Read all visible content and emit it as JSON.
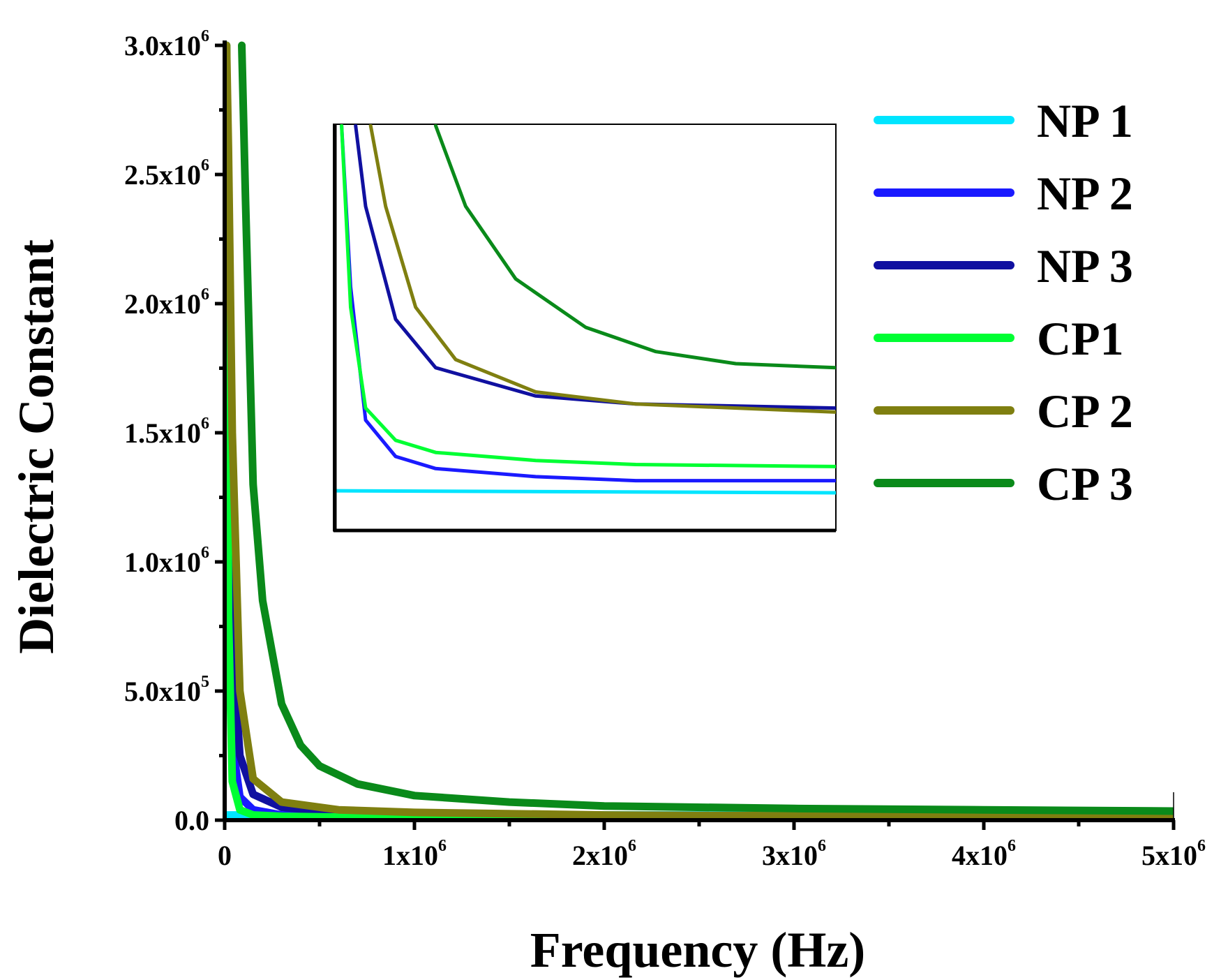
{
  "chart_data": {
    "type": "line",
    "title": "",
    "xlabel": "Frequency (Hz)",
    "ylabel": "Dielectric Constant",
    "xlim": [
      0,
      5000000
    ],
    "ylim": [
      0,
      3000000
    ],
    "x_ticks": [
      {
        "value": 0,
        "mantissa": "0",
        "exp": ""
      },
      {
        "value": 1000000,
        "mantissa": "1x10",
        "exp": "6"
      },
      {
        "value": 2000000,
        "mantissa": "2x10",
        "exp": "6"
      },
      {
        "value": 3000000,
        "mantissa": "3x10",
        "exp": "6"
      },
      {
        "value": 4000000,
        "mantissa": "4x10",
        "exp": "6"
      },
      {
        "value": 5000000,
        "mantissa": "5x10",
        "exp": "6"
      }
    ],
    "y_ticks": [
      {
        "value": 0,
        "mantissa": "0.0",
        "exp": ""
      },
      {
        "value": 500000,
        "mantissa": "5.0x10",
        "exp": "5"
      },
      {
        "value": 1000000,
        "mantissa": "1.0x10",
        "exp": "6"
      },
      {
        "value": 1500000,
        "mantissa": "1.5x10",
        "exp": "6"
      },
      {
        "value": 2000000,
        "mantissa": "2.0x10",
        "exp": "6"
      },
      {
        "value": 2500000,
        "mantissa": "2.5x10",
        "exp": "6"
      },
      {
        "value": 3000000,
        "mantissa": "3.0x10",
        "exp": "6"
      }
    ],
    "legend_position": "top-right",
    "series": [
      {
        "name": "NP 1",
        "color": "#00e5ff",
        "x": [
          0,
          5000000
        ],
        "values": [
          20000,
          20000
        ]
      },
      {
        "name": "NP 2",
        "color": "#1a1aff",
        "x": [
          10000,
          20000,
          40000,
          80000,
          150000,
          300000,
          600000,
          1000000,
          2000000,
          3000000,
          5000000
        ],
        "values": [
          2400000,
          1000000,
          300000,
          90000,
          40000,
          20000,
          10000,
          7000,
          5000,
          4000,
          3000
        ]
      },
      {
        "name": "NP 3",
        "color": "#1010a0",
        "x": [
          10000,
          20000,
          40000,
          80000,
          150000,
          300000,
          600000,
          1000000,
          2000000,
          3000000,
          5000000
        ],
        "values": [
          3000000,
          1800000,
          700000,
          250000,
          100000,
          50000,
          30000,
          22000,
          17000,
          16000,
          15000
        ]
      },
      {
        "name": "CP1",
        "color": "#00ff33",
        "x": [
          10000,
          20000,
          40000,
          80000,
          150000,
          300000,
          600000,
          1000000,
          2000000,
          3000000,
          5000000
        ],
        "values": [
          3000000,
          800000,
          150000,
          40000,
          20000,
          15000,
          12000,
          11000,
          10000,
          10000,
          10000
        ]
      },
      {
        "name": "CP 2",
        "color": "#7f7f10",
        "x": [
          10000,
          20000,
          40000,
          80000,
          150000,
          300000,
          600000,
          1000000,
          2000000,
          3000000,
          5000000
        ],
        "values": [
          3000000,
          2600000,
          1500000,
          500000,
          160000,
          70000,
          40000,
          30000,
          20000,
          17000,
          15000
        ]
      },
      {
        "name": "CP 3",
        "color": "#0a8a1a",
        "x": [
          90000,
          110000,
          150000,
          200000,
          300000,
          400000,
          500000,
          700000,
          1000000,
          1500000,
          2000000,
          3000000,
          4000000,
          5000000
        ],
        "values": [
          3000000,
          2400000,
          1300000,
          850000,
          450000,
          290000,
          210000,
          140000,
          95000,
          70000,
          55000,
          45000,
          40000,
          35000
        ]
      }
    ],
    "inset": {
      "description_axes": "unlabeled zoom of low-frequency region",
      "xlim": [
        0,
        5000000
      ],
      "ylim": [
        0,
        1
      ],
      "series": [
        {
          "name": "NP 1",
          "x": [
            0,
            5000000
          ],
          "values": [
            0.095,
            0.09
          ]
        },
        {
          "name": "NP 2",
          "x": [
            60000,
            150000,
            300000,
            600000,
            1000000,
            2000000,
            3000000,
            5000000
          ],
          "values": [
            1.0,
            0.6,
            0.27,
            0.18,
            0.15,
            0.13,
            0.12,
            0.12
          ]
        },
        {
          "name": "NP 3",
          "x": [
            200000,
            300000,
            600000,
            1000000,
            2000000,
            3000000,
            5000000
          ],
          "values": [
            1.0,
            0.8,
            0.52,
            0.4,
            0.33,
            0.31,
            0.3
          ]
        },
        {
          "name": "CP1",
          "x": [
            60000,
            150000,
            300000,
            600000,
            1000000,
            2000000,
            3000000,
            5000000
          ],
          "values": [
            1.0,
            0.55,
            0.3,
            0.22,
            0.19,
            0.17,
            0.16,
            0.155
          ]
        },
        {
          "name": "CP 2",
          "x": [
            350000,
            500000,
            800000,
            1200000,
            2000000,
            3000000,
            5000000
          ],
          "values": [
            1.0,
            0.8,
            0.55,
            0.42,
            0.34,
            0.31,
            0.29
          ]
        },
        {
          "name": "CP 3",
          "x": [
            1000000,
            1300000,
            1800000,
            2500000,
            3200000,
            4000000,
            5000000
          ],
          "values": [
            1.0,
            0.8,
            0.62,
            0.5,
            0.44,
            0.41,
            0.4
          ]
        }
      ]
    }
  }
}
